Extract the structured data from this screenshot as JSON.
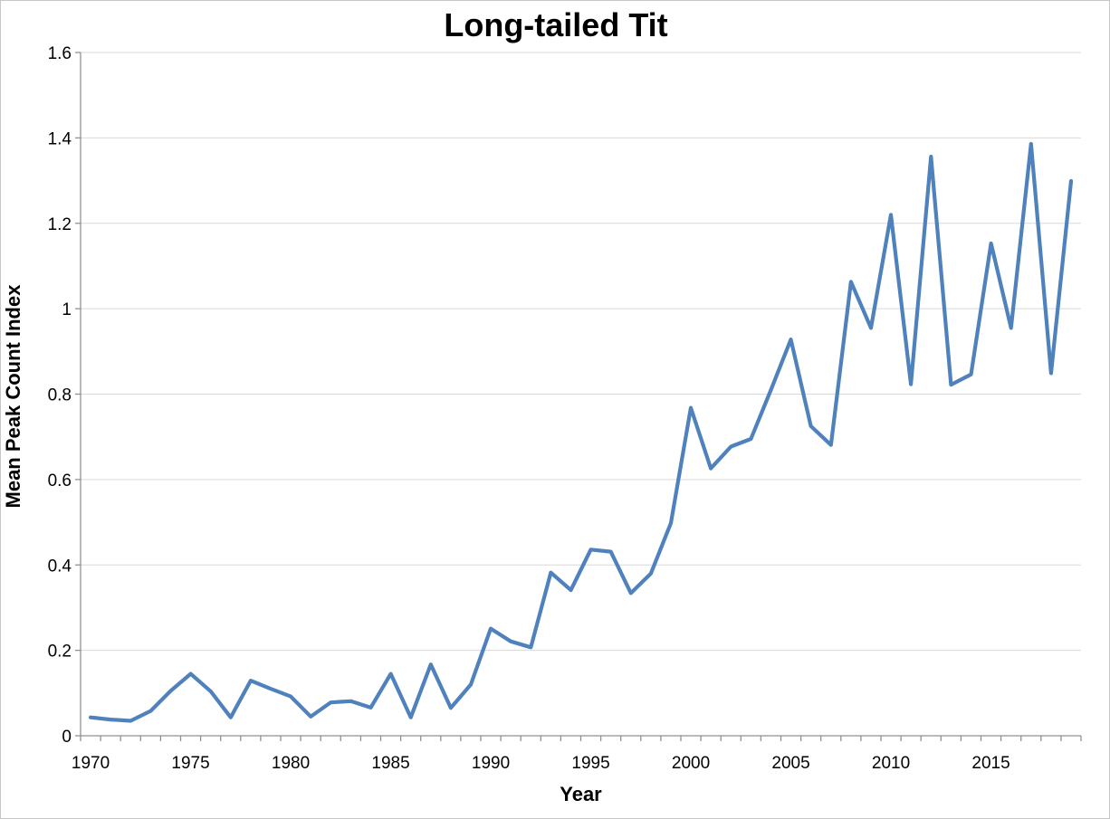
{
  "chart_data": {
    "type": "line",
    "title": "Long-tailed Tit",
    "xlabel": "Year",
    "ylabel": "Mean Peak Count Index",
    "x": [
      1970,
      1971,
      1972,
      1973,
      1974,
      1975,
      1976,
      1977,
      1978,
      1979,
      1980,
      1981,
      1982,
      1983,
      1984,
      1985,
      1986,
      1987,
      1988,
      1989,
      1990,
      1991,
      1992,
      1993,
      1994,
      1995,
      1996,
      1997,
      1998,
      1999,
      2000,
      2001,
      2002,
      2003,
      2004,
      2005,
      2006,
      2007,
      2008,
      2009,
      2010,
      2011,
      2012,
      2013,
      2014,
      2015,
      2016,
      2017,
      2018,
      2019
    ],
    "values": [
      0.043,
      0.038,
      0.035,
      0.058,
      0.105,
      0.145,
      0.104,
      0.043,
      0.129,
      0.11,
      0.092,
      0.045,
      0.078,
      0.081,
      0.066,
      0.145,
      0.043,
      0.167,
      0.065,
      0.12,
      0.251,
      0.221,
      0.207,
      0.382,
      0.341,
      0.436,
      0.431,
      0.334,
      0.38,
      0.498,
      0.768,
      0.626,
      0.677,
      0.695,
      0.81,
      0.928,
      0.725,
      0.681,
      1.063,
      0.955,
      1.22,
      0.823,
      1.356,
      0.822,
      0.846,
      1.153,
      0.955,
      1.386,
      0.849,
      1.299
    ],
    "ylim": [
      0,
      1.6
    ],
    "yticks": [
      0,
      0.2,
      0.4,
      0.6,
      0.8,
      1,
      1.2,
      1.4,
      1.6
    ],
    "ytick_labels": [
      "0",
      "0.2",
      "0.4",
      "0.6",
      "0.8",
      "1",
      "1.2",
      "1.4",
      "1.6"
    ],
    "xtick_label_years": [
      1970,
      1975,
      1980,
      1985,
      1990,
      1995,
      2000,
      2005,
      2010,
      2015
    ],
    "xtick_labels": [
      "1970",
      "1975",
      "1980",
      "1985",
      "1990",
      "1995",
      "2000",
      "2005",
      "2010",
      "2015"
    ],
    "grid": true,
    "legend": false,
    "line_color": "#4F81BD",
    "gridline_color": "#D9D9D9",
    "axis_color": "#919191",
    "text_color": "#000000"
  }
}
